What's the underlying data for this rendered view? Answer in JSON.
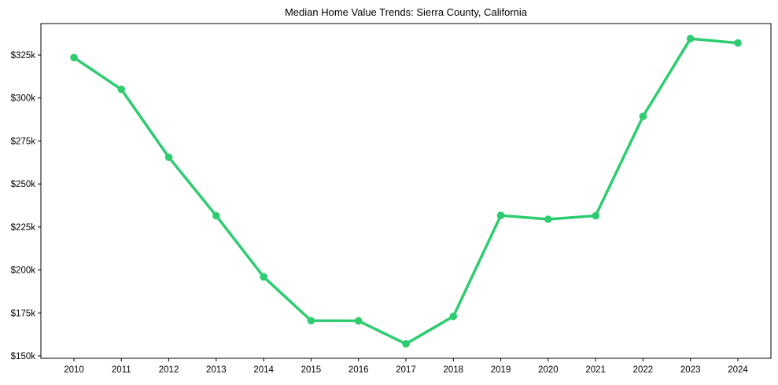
{
  "chart_data": {
    "type": "line",
    "title": "Median Home Value Trends: Sierra County, California",
    "xlabel": "",
    "ylabel": "",
    "categories": [
      "2010",
      "2011",
      "2012",
      "2013",
      "2014",
      "2015",
      "2016",
      "2017",
      "2018",
      "2019",
      "2020",
      "2021",
      "2022",
      "2023",
      "2024"
    ],
    "series": [
      {
        "name": "Median Home Value",
        "color": "#2ecc71",
        "values": [
          323500,
          305000,
          265500,
          231500,
          196000,
          170500,
          170400,
          157000,
          173000,
          231700,
          229500,
          231500,
          289300,
          334500,
          332000
        ]
      }
    ],
    "y_ticks": [
      150000,
      175000,
      200000,
      225000,
      250000,
      275000,
      300000,
      325000
    ],
    "y_tick_labels": [
      "$150k",
      "$175k",
      "$200k",
      "$225k",
      "$250k",
      "$275k",
      "$300k",
      "$325k"
    ],
    "ylim": [
      148500,
      340000
    ],
    "grid": false,
    "legend": "none",
    "markers": true
  }
}
